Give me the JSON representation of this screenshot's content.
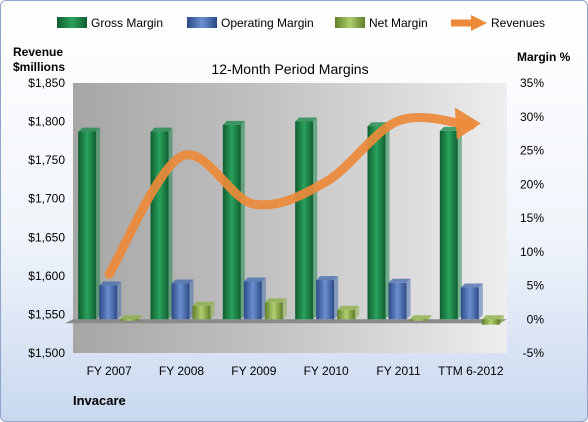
{
  "chart_data": {
    "type": "bar",
    "title": "12-Month Period Margins",
    "company": "Invacare",
    "categories": [
      "FY 2007",
      "FY 2008",
      "FY 2009",
      "FY 2010",
      "FY 2011",
      "TTM 6-2012"
    ],
    "left_axis": {
      "title_line1": "Revenue",
      "title_line2": "$millions",
      "min": 1500,
      "max": 1850,
      "step": 50,
      "tick_labels": [
        "$1,500",
        "$1,550",
        "$1,600",
        "$1,650",
        "$1,700",
        "$1,750",
        "$1,800",
        "$1,850"
      ]
    },
    "right_axis": {
      "title": "Margin %",
      "min": -5,
      "max": 35,
      "step": 5,
      "tick_labels": [
        "-5%",
        "0%",
        "5%",
        "10%",
        "15%",
        "20%",
        "25%",
        "30%",
        "35%"
      ]
    },
    "series": [
      {
        "name": "Gross Margin",
        "type": "bar",
        "axis": "right",
        "color": "#1f8a4c",
        "values": [
          27.8,
          27.8,
          28.8,
          29.3,
          28.6,
          27.9
        ]
      },
      {
        "name": "Operating Margin",
        "type": "bar",
        "axis": "right",
        "color": "#4a6fb0",
        "values": [
          5.0,
          5.3,
          5.6,
          5.8,
          5.4,
          4.7
        ]
      },
      {
        "name": "Net Margin",
        "type": "bar",
        "axis": "right",
        "color": "#8db04a",
        "values": [
          -0.2,
          2.0,
          2.5,
          1.4,
          -0.2,
          -0.8
        ]
      },
      {
        "name": "Revenues",
        "type": "line",
        "axis": "left",
        "color": "#ec8a3a",
        "values": [
          1602,
          1755,
          1693,
          1722,
          1801,
          1795
        ]
      }
    ],
    "legend_position": "top",
    "grid": false
  }
}
